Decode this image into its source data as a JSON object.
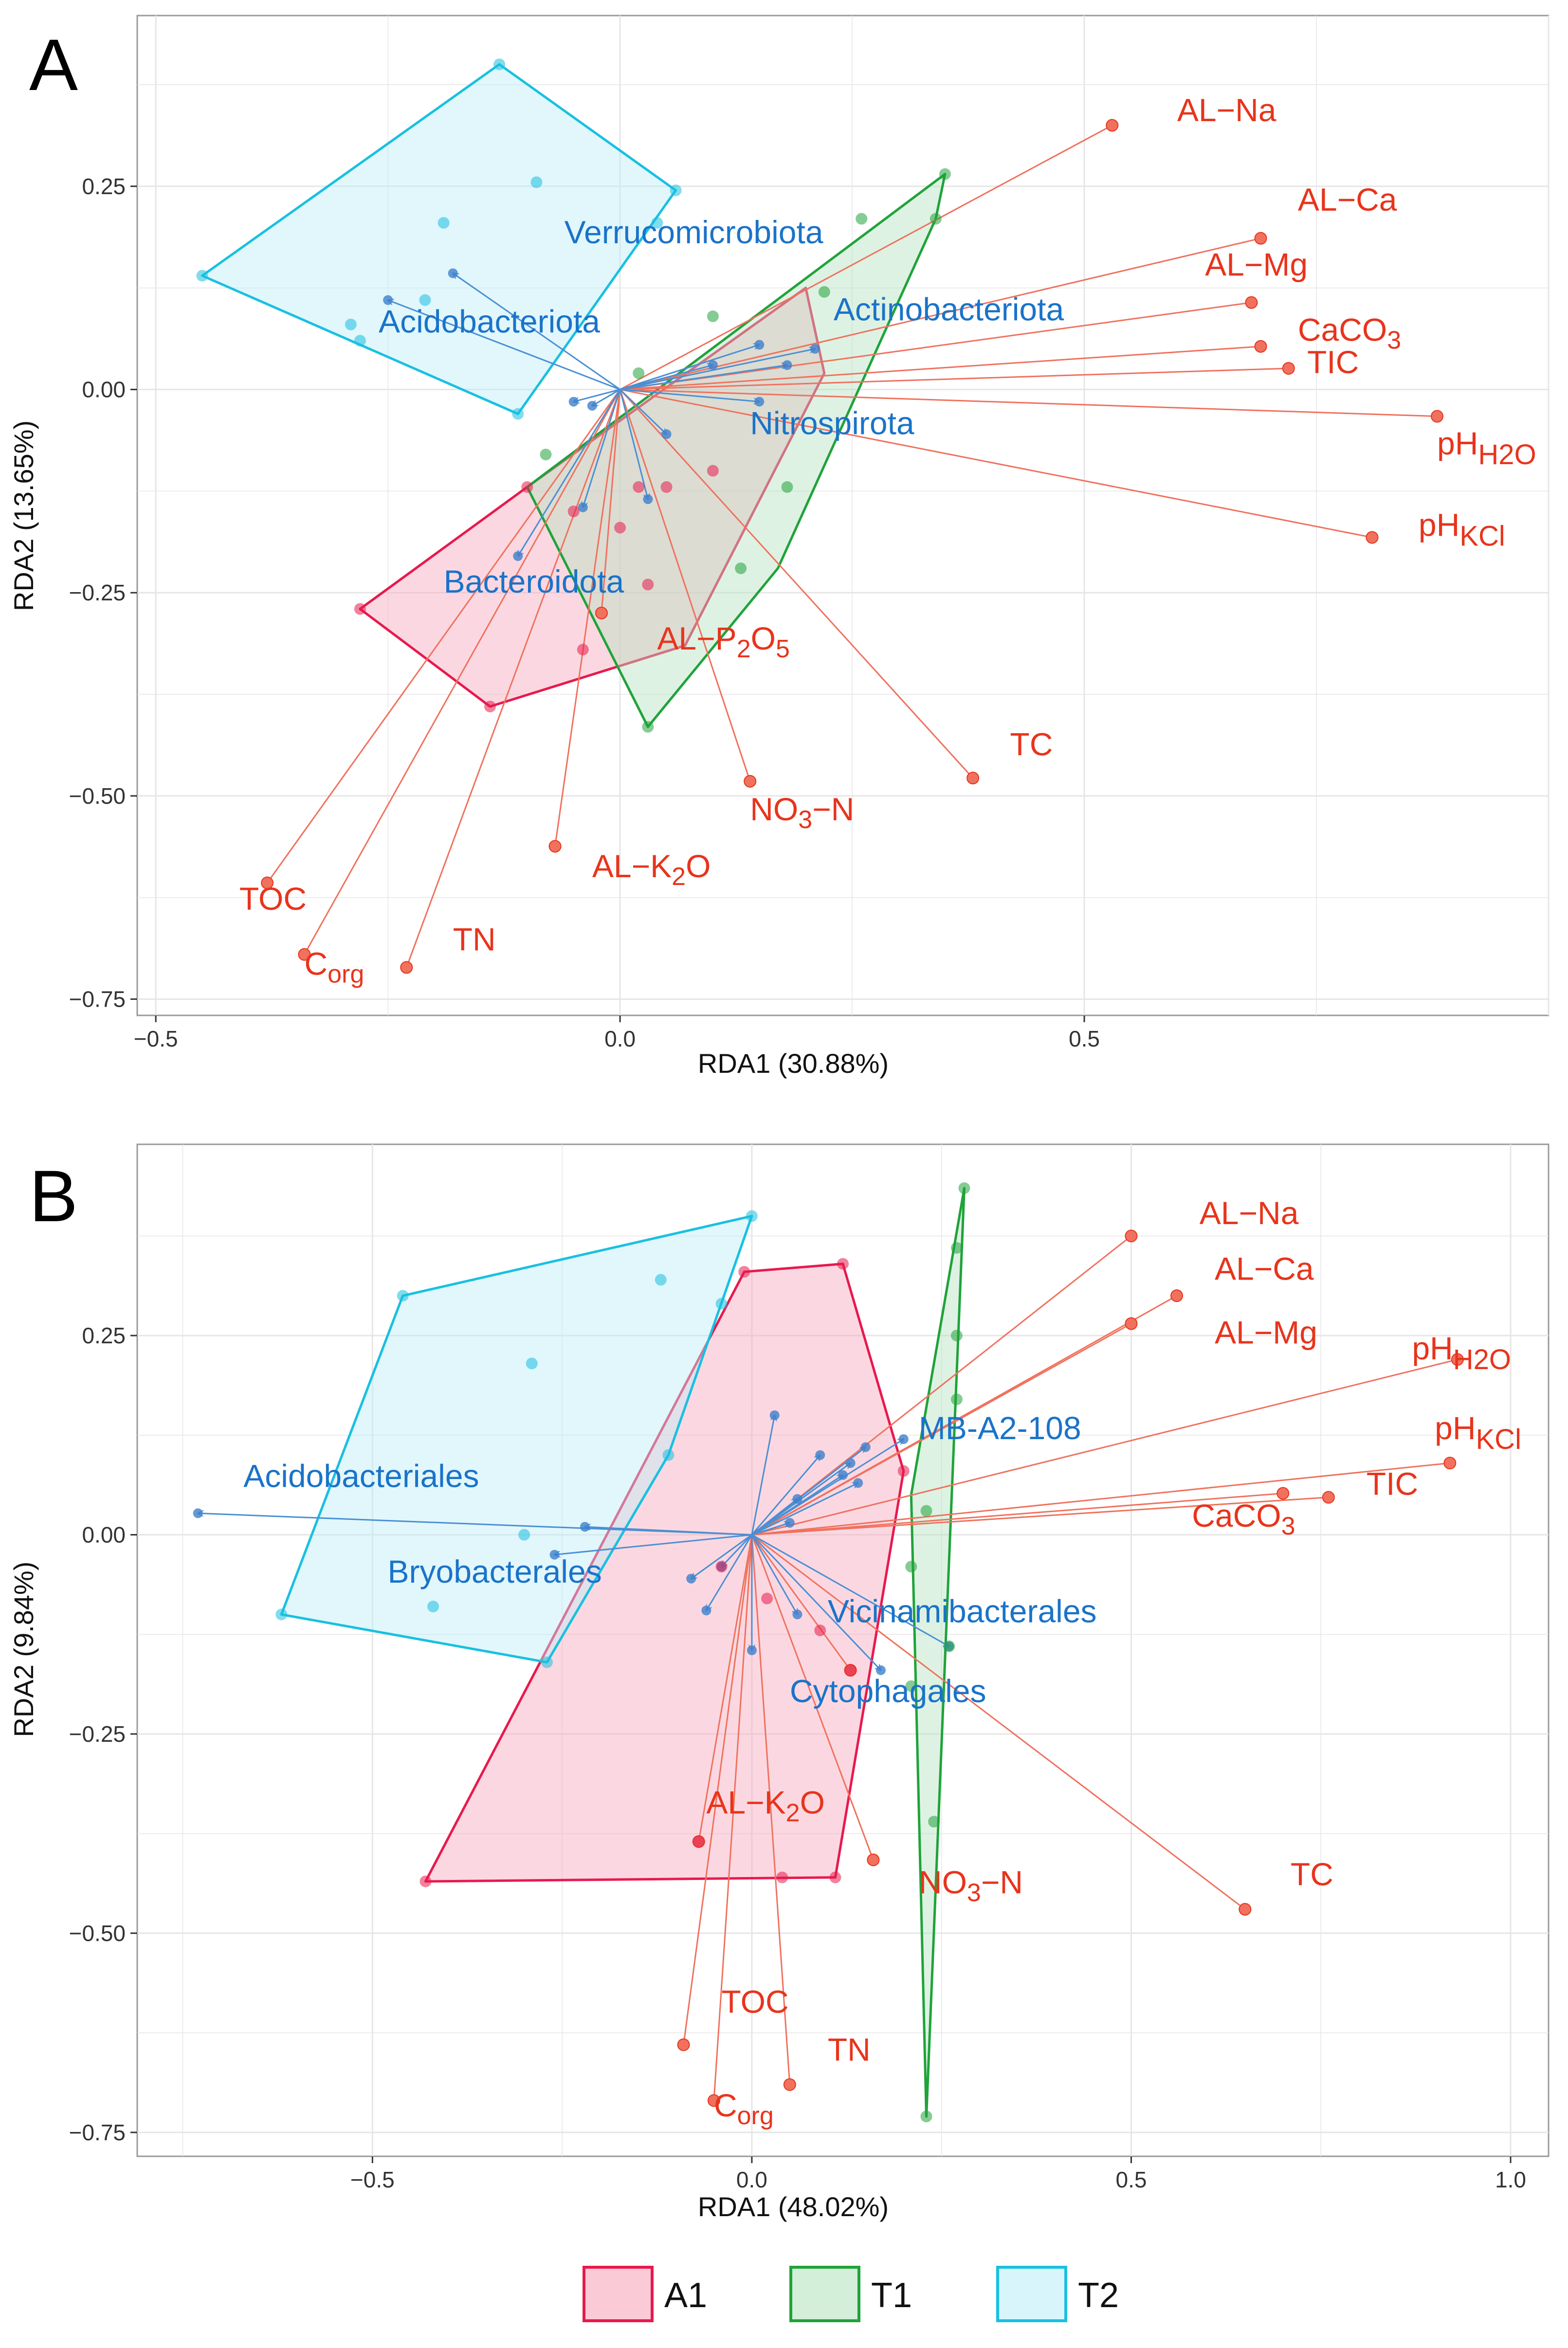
{
  "chart_data": [
    {
      "panel": "A",
      "type": "scatter",
      "xlabel": "RDA1 (30.88%)",
      "ylabel": "RDA2 (13.65%)",
      "xlim": [
        -0.52,
        1.0
      ],
      "ylim": [
        -0.77,
        0.46
      ],
      "xticks": [
        -0.5,
        0.0,
        0.5
      ],
      "xtick_labels": [
        "−0.5",
        "0.0",
        "0.5"
      ],
      "yticks": [
        0.25,
        0.0,
        -0.25,
        -0.5,
        -0.75
      ],
      "ytick_labels": [
        "0.25",
        "0.00",
        "−0.25",
        "−0.50",
        "−0.75"
      ],
      "env_vectors": [
        {
          "label": "AL−Na",
          "x": 0.53,
          "y": 0.325
        },
        {
          "label": "AL−Ca",
          "x": 0.69,
          "y": 0.186
        },
        {
          "label": "AL−Mg",
          "x": 0.68,
          "y": 0.107
        },
        {
          "label": "CaCO3",
          "x": 0.69,
          "y": 0.053
        },
        {
          "label": "TIC",
          "x": 0.72,
          "y": 0.026
        },
        {
          "label": "pH H2O",
          "x": 0.88,
          "y": -0.033
        },
        {
          "label": "pH KCl",
          "x": 0.81,
          "y": -0.182
        },
        {
          "label": "AL−P2O5",
          "x": -0.02,
          "y": -0.275
        },
        {
          "label": "TC",
          "x": 0.38,
          "y": -0.478
        },
        {
          "label": "NO3−N",
          "x": 0.14,
          "y": -0.482
        },
        {
          "label": "AL−K2O",
          "x": -0.07,
          "y": -0.562
        },
        {
          "label": "TOC",
          "x": -0.38,
          "y": -0.607
        },
        {
          "label": "Corg",
          "x": -0.34,
          "y": -0.695
        },
        {
          "label": "TN",
          "x": -0.23,
          "y": -0.711
        }
      ],
      "env_labels": [
        {
          "label": "AL−Na",
          "x": 0.6,
          "y": 0.33
        },
        {
          "label": "AL−Ca",
          "x": 0.73,
          "y": 0.22
        },
        {
          "label": "AL−Mg",
          "x": 0.63,
          "y": 0.14
        },
        {
          "label": "CaCO3",
          "x": 0.73,
          "y": 0.06
        },
        {
          "label": "TIC",
          "x": 0.74,
          "y": 0.02
        },
        {
          "label": "pH H2O",
          "x": 0.88,
          "y": -0.08
        },
        {
          "label": "pH KCl",
          "x": 0.86,
          "y": -0.18
        },
        {
          "label": "AL−P2O5",
          "x": 0.04,
          "y": -0.32
        },
        {
          "label": "TC",
          "x": 0.42,
          "y": -0.45
        },
        {
          "label": "NO3−N",
          "x": 0.14,
          "y": -0.53
        },
        {
          "label": "AL−K2O",
          "x": -0.03,
          "y": -0.6
        },
        {
          "label": "TOC",
          "x": -0.41,
          "y": -0.64
        },
        {
          "label": "Corg",
          "x": -0.34,
          "y": -0.72
        },
        {
          "label": "TN",
          "x": -0.18,
          "y": -0.69
        }
      ],
      "taxa_vectors": [
        {
          "label": "Verrucomicrobiota",
          "x": -0.18,
          "y": 0.143,
          "shown": true
        },
        {
          "label": "Acidobacteriota",
          "x": -0.25,
          "y": 0.11,
          "shown": true
        },
        {
          "label": "Actinobacteriota",
          "x": 0.15,
          "y": 0.055,
          "shown": true
        },
        {
          "label": "Nitrospirota",
          "x": 0.05,
          "y": -0.055,
          "shown": true
        },
        {
          "label": "Bacteroidota",
          "x": -0.11,
          "y": -0.205,
          "shown": true
        },
        {
          "label": "",
          "x": -0.04,
          "y": -0.145,
          "shown": false
        },
        {
          "label": "",
          "x": 0.03,
          "y": -0.135,
          "shown": false
        },
        {
          "label": "",
          "x": 0.1,
          "y": 0.03,
          "shown": false
        },
        {
          "label": "",
          "x": 0.18,
          "y": 0.03,
          "shown": false
        },
        {
          "label": "",
          "x": 0.21,
          "y": 0.05,
          "shown": false
        },
        {
          "label": "",
          "x": -0.03,
          "y": -0.02,
          "shown": false
        },
        {
          "label": "",
          "x": -0.05,
          "y": -0.015,
          "shown": false
        },
        {
          "label": "",
          "x": 0.15,
          "y": -0.015,
          "shown": false
        }
      ],
      "taxa_labels": [
        {
          "label": "Verrucomicrobiota",
          "x": -0.06,
          "y": 0.18
        },
        {
          "label": "Acidobacteriota",
          "x": -0.26,
          "y": 0.07
        },
        {
          "label": "Actinobacteriota",
          "x": 0.23,
          "y": 0.085
        },
        {
          "label": "Nitrospirota",
          "x": 0.14,
          "y": -0.055
        },
        {
          "label": "Bacteroidota",
          "x": -0.19,
          "y": -0.25
        }
      ],
      "groups": [
        {
          "name": "A1",
          "color": "#e8194d",
          "fill": "#f7a8bd",
          "hull": [
            [
              -0.28,
              -0.27
            ],
            [
              -0.14,
              -0.39
            ],
            [
              0.07,
              -0.315
            ],
            [
              0.22,
              0.02
            ],
            [
              0.2,
              0.125
            ],
            [
              -0.1,
              -0.12
            ]
          ],
          "points": [
            [
              -0.1,
              -0.12
            ],
            [
              -0.05,
              -0.15
            ],
            [
              0.02,
              -0.12
            ],
            [
              0.03,
              -0.24
            ],
            [
              -0.04,
              -0.32
            ],
            [
              0.0,
              -0.17
            ],
            [
              0.05,
              -0.12
            ],
            [
              0.1,
              -0.1
            ],
            [
              -0.14,
              -0.39
            ],
            [
              -0.28,
              -0.27
            ]
          ]
        },
        {
          "name": "T1",
          "color": "#1fa33a",
          "fill": "#b6e3c0",
          "hull": [
            [
              -0.1,
              -0.12
            ],
            [
              0.35,
              0.265
            ],
            [
              0.34,
              0.21
            ],
            [
              0.17,
              -0.22
            ],
            [
              0.03,
              -0.415
            ]
          ],
          "points": [
            [
              -0.08,
              -0.08
            ],
            [
              0.02,
              0.02
            ],
            [
              0.1,
              0.09
            ],
            [
              0.22,
              0.12
            ],
            [
              0.26,
              0.21
            ],
            [
              0.35,
              0.265
            ],
            [
              0.34,
              0.21
            ],
            [
              0.18,
              -0.12
            ],
            [
              0.13,
              -0.22
            ],
            [
              0.03,
              -0.415
            ]
          ]
        },
        {
          "name": "T2",
          "color": "#19c0e0",
          "fill": "#bdeef8",
          "hull": [
            [
              -0.45,
              0.14
            ],
            [
              -0.13,
              0.4
            ],
            [
              0.06,
              0.245
            ],
            [
              -0.11,
              -0.03
            ]
          ],
          "points": [
            [
              -0.45,
              0.14
            ],
            [
              -0.13,
              0.4
            ],
            [
              -0.09,
              0.255
            ],
            [
              -0.19,
              0.205
            ],
            [
              0.06,
              0.245
            ],
            [
              0.04,
              0.205
            ],
            [
              -0.21,
              0.11
            ],
            [
              -0.29,
              0.08
            ],
            [
              -0.28,
              0.06
            ],
            [
              -0.11,
              -0.03
            ]
          ]
        }
      ]
    },
    {
      "panel": "B",
      "type": "scatter",
      "xlabel": "RDA1 (48.02%)",
      "ylabel": "RDA2 (9.84%)",
      "xlim": [
        -0.81,
        1.05
      ],
      "ylim": [
        -0.78,
        0.49
      ],
      "xticks": [
        -0.5,
        0.0,
        0.5,
        1.0
      ],
      "xtick_labels": [
        "−0.5",
        "0.0",
        "0.5",
        "1.0"
      ],
      "yticks": [
        0.25,
        0.0,
        -0.25,
        -0.5,
        -0.75
      ],
      "ytick_labels": [
        "0.25",
        "0.00",
        "−0.25",
        "−0.50",
        "−0.75"
      ],
      "env_vectors": [
        {
          "label": "AL−Na",
          "x": 0.5,
          "y": 0.375
        },
        {
          "label": "AL−Ca",
          "x": 0.56,
          "y": 0.3
        },
        {
          "label": "AL−Mg",
          "x": 0.5,
          "y": 0.265
        },
        {
          "label": "pH H2O",
          "x": 0.93,
          "y": 0.22
        },
        {
          "label": "pH KCl",
          "x": 0.92,
          "y": 0.09
        },
        {
          "label": "TIC",
          "x": 0.76,
          "y": 0.047
        },
        {
          "label": "CaCO3",
          "x": 0.7,
          "y": 0.052
        },
        {
          "label": "TC",
          "x": 0.65,
          "y": -0.47
        },
        {
          "label": "NO3−N",
          "x": 0.16,
          "y": -0.408
        },
        {
          "label": "AL−K2O",
          "x": -0.07,
          "y": -0.385
        },
        {
          "label": "TOC",
          "x": -0.09,
          "y": -0.64
        },
        {
          "label": "Corg",
          "x": -0.05,
          "y": -0.71
        },
        {
          "label": "TN",
          "x": 0.05,
          "y": -0.69
        },
        {
          "label": "",
          "x": 0.13,
          "y": -0.17
        }
      ],
      "env_labels": [
        {
          "label": "AL−Na",
          "x": 0.59,
          "y": 0.39
        },
        {
          "label": "AL−Ca",
          "x": 0.61,
          "y": 0.32
        },
        {
          "label": "AL−Mg",
          "x": 0.61,
          "y": 0.24
        },
        {
          "label": "pH H2O",
          "x": 0.87,
          "y": 0.22
        },
        {
          "label": "pH KCl",
          "x": 0.9,
          "y": 0.12
        },
        {
          "label": "TIC",
          "x": 0.81,
          "y": 0.05
        },
        {
          "label": "CaCO3",
          "x": 0.58,
          "y": 0.01
        },
        {
          "label": "TC",
          "x": 0.71,
          "y": -0.44
        },
        {
          "label": "NO3−N",
          "x": 0.22,
          "y": -0.45
        },
        {
          "label": "AL−K2O",
          "x": -0.06,
          "y": -0.35
        },
        {
          "label": "TOC",
          "x": -0.04,
          "y": -0.6
        },
        {
          "label": "Corg",
          "x": -0.05,
          "y": -0.73
        },
        {
          "label": "TN",
          "x": 0.1,
          "y": -0.66
        }
      ],
      "taxa_vectors": [
        {
          "label": "Acidobacteriales",
          "x": -0.73,
          "y": 0.027,
          "shown": true
        },
        {
          "label": "Bryobacterales",
          "x": -0.26,
          "y": -0.025,
          "shown": true
        },
        {
          "label": "MB-A2-108",
          "x": 0.2,
          "y": 0.12,
          "shown": true
        },
        {
          "label": "Vicinamibacterales",
          "x": 0.26,
          "y": -0.14,
          "shown": true
        },
        {
          "label": "Cytophagales",
          "x": 0.17,
          "y": -0.17,
          "shown": true
        },
        {
          "label": "",
          "x": -0.22,
          "y": 0.01,
          "shown": false
        },
        {
          "label": "",
          "x": 0.03,
          "y": 0.15,
          "shown": false
        },
        {
          "label": "",
          "x": 0.09,
          "y": 0.1,
          "shown": false
        },
        {
          "label": "",
          "x": 0.13,
          "y": 0.09,
          "shown": false
        },
        {
          "label": "",
          "x": 0.15,
          "y": 0.11,
          "shown": false
        },
        {
          "label": "",
          "x": 0.12,
          "y": 0.075,
          "shown": false
        },
        {
          "label": "",
          "x": 0.14,
          "y": 0.065,
          "shown": false
        },
        {
          "label": "",
          "x": 0.06,
          "y": 0.045,
          "shown": false
        },
        {
          "label": "",
          "x": 0.05,
          "y": 0.015,
          "shown": false
        },
        {
          "label": "",
          "x": -0.08,
          "y": -0.055,
          "shown": false
        },
        {
          "label": "",
          "x": -0.06,
          "y": -0.095,
          "shown": false
        },
        {
          "label": "",
          "x": 0.06,
          "y": -0.1,
          "shown": false
        },
        {
          "label": "",
          "x": 0.0,
          "y": -0.145,
          "shown": false
        },
        {
          "label": "",
          "x": -0.04,
          "y": -0.04,
          "shown": false
        }
      ],
      "taxa_labels": [
        {
          "label": "Acidobacteriales",
          "x": -0.67,
          "y": 0.06
        },
        {
          "label": "Bryobacterales",
          "x": -0.48,
          "y": -0.06
        },
        {
          "label": "MB-A2-108",
          "x": 0.22,
          "y": 0.12
        },
        {
          "label": "Vicinamibacterales",
          "x": 0.1,
          "y": -0.11
        },
        {
          "label": "Cytophagales",
          "x": 0.05,
          "y": -0.21
        }
      ],
      "groups": [
        {
          "name": "A1",
          "color": "#e8194d",
          "fill": "#f7a8bd",
          "hull": [
            [
              -0.43,
              -0.435
            ],
            [
              0.11,
              -0.43
            ],
            [
              0.2,
              0.08
            ],
            [
              0.12,
              0.34
            ],
            [
              -0.01,
              0.33
            ]
          ],
          "points": [
            [
              -0.43,
              -0.435
            ],
            [
              -0.01,
              0.33
            ],
            [
              0.12,
              0.34
            ],
            [
              0.2,
              0.08
            ],
            [
              0.11,
              -0.43
            ],
            [
              0.04,
              -0.43
            ],
            [
              0.09,
              -0.12
            ],
            [
              0.13,
              -0.17
            ],
            [
              -0.04,
              -0.04
            ],
            [
              0.02,
              -0.08
            ],
            [
              -0.07,
              -0.385
            ]
          ]
        },
        {
          "name": "T1",
          "color": "#1fa33a",
          "fill": "#b6e3c0",
          "hull": [
            [
              0.28,
              0.435
            ],
            [
              0.23,
              -0.73
            ],
            [
              0.21,
              0.05
            ]
          ],
          "points": [
            [
              0.28,
              0.435
            ],
            [
              0.27,
              0.36
            ],
            [
              0.27,
              0.25
            ],
            [
              0.27,
              0.17
            ],
            [
              0.23,
              0.03
            ],
            [
              0.21,
              -0.04
            ],
            [
              0.21,
              -0.19
            ],
            [
              0.24,
              -0.36
            ],
            [
              0.23,
              -0.73
            ],
            [
              0.26,
              -0.14
            ]
          ]
        },
        {
          "name": "T2",
          "color": "#19c0e0",
          "fill": "#bdeef8",
          "hull": [
            [
              -0.62,
              -0.1
            ],
            [
              -0.27,
              -0.16
            ],
            [
              -0.11,
              0.1
            ],
            [
              0.0,
              0.4
            ],
            [
              -0.46,
              0.3
            ]
          ],
          "points": [
            [
              -0.62,
              -0.1
            ],
            [
              -0.46,
              0.3
            ],
            [
              0.0,
              0.4
            ],
            [
              -0.12,
              0.32
            ],
            [
              -0.04,
              0.29
            ],
            [
              -0.29,
              0.215
            ],
            [
              -0.11,
              0.1
            ],
            [
              -0.3,
              0.0
            ],
            [
              -0.42,
              -0.09
            ],
            [
              -0.27,
              -0.16
            ]
          ]
        }
      ]
    }
  ],
  "legend": {
    "items": [
      {
        "name": "A1",
        "color": "#e8194d",
        "fill": "#f7a8bd"
      },
      {
        "name": "T1",
        "color": "#1fa33a",
        "fill": "#b6e3c0"
      },
      {
        "name": "T2",
        "color": "#19c0e0",
        "fill": "#bdeef8"
      }
    ]
  },
  "colors": {
    "env": "#e8341c",
    "env_line": "#f0715e",
    "taxa": "#1a73c9",
    "taxa_line": "#4a8fd4",
    "grid": "#e6e6e6",
    "panel_border": "#9a9a9a"
  }
}
